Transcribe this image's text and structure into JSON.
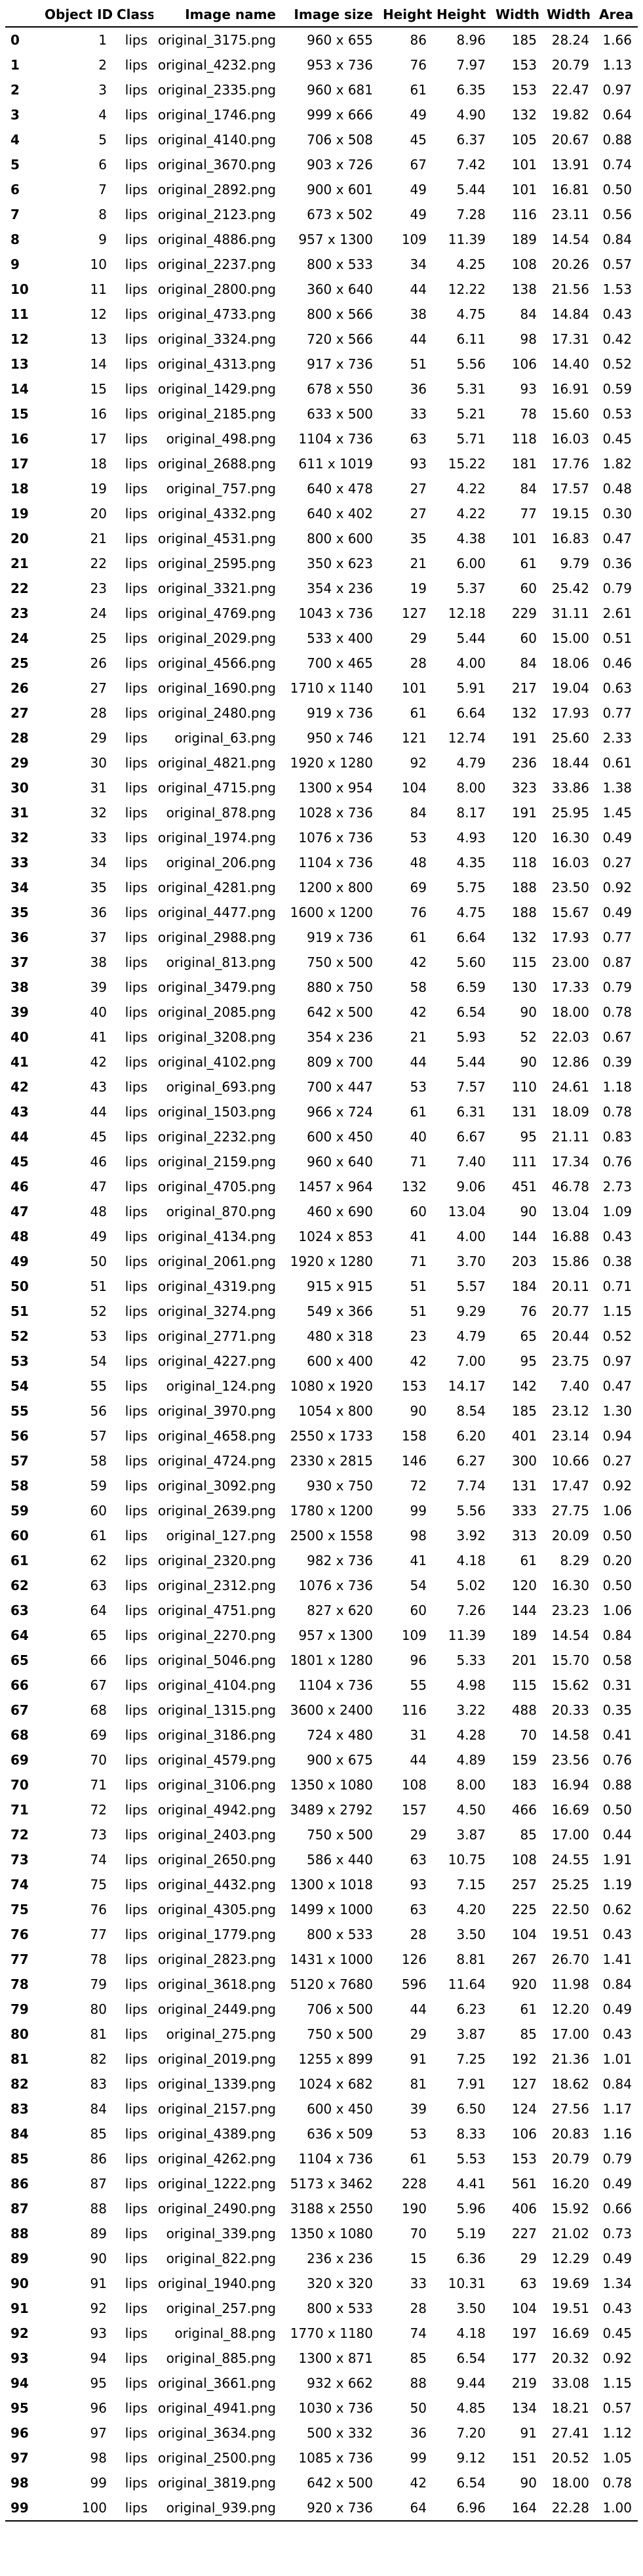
{
  "table": {
    "columns": [
      "",
      "Object ID",
      "Class",
      "Image name",
      "Image size",
      "Height",
      "Height",
      "Width",
      "Width",
      "Area"
    ],
    "rows": [
      [
        "0",
        "1",
        "lips",
        "original_3175.png",
        "960 x 655",
        "86",
        "8.96",
        "185",
        "28.24",
        "1.66"
      ],
      [
        "1",
        "2",
        "lips",
        "original_4232.png",
        "953 x 736",
        "76",
        "7.97",
        "153",
        "20.79",
        "1.13"
      ],
      [
        "2",
        "3",
        "lips",
        "original_2335.png",
        "960 x 681",
        "61",
        "6.35",
        "153",
        "22.47",
        "0.97"
      ],
      [
        "3",
        "4",
        "lips",
        "original_1746.png",
        "999 x 666",
        "49",
        "4.90",
        "132",
        "19.82",
        "0.64"
      ],
      [
        "4",
        "5",
        "lips",
        "original_4140.png",
        "706 x 508",
        "45",
        "6.37",
        "105",
        "20.67",
        "0.88"
      ],
      [
        "5",
        "6",
        "lips",
        "original_3670.png",
        "903 x 726",
        "67",
        "7.42",
        "101",
        "13.91",
        "0.74"
      ],
      [
        "6",
        "7",
        "lips",
        "original_2892.png",
        "900 x 601",
        "49",
        "5.44",
        "101",
        "16.81",
        "0.50"
      ],
      [
        "7",
        "8",
        "lips",
        "original_2123.png",
        "673 x 502",
        "49",
        "7.28",
        "116",
        "23.11",
        "0.56"
      ],
      [
        "8",
        "9",
        "lips",
        "original_4886.png",
        "957 x 1300",
        "109",
        "11.39",
        "189",
        "14.54",
        "0.84"
      ],
      [
        "9",
        "10",
        "lips",
        "original_2237.png",
        "800 x 533",
        "34",
        "4.25",
        "108",
        "20.26",
        "0.57"
      ],
      [
        "10",
        "11",
        "lips",
        "original_2800.png",
        "360 x 640",
        "44",
        "12.22",
        "138",
        "21.56",
        "1.53"
      ],
      [
        "11",
        "12",
        "lips",
        "original_4733.png",
        "800 x 566",
        "38",
        "4.75",
        "84",
        "14.84",
        "0.43"
      ],
      [
        "12",
        "13",
        "lips",
        "original_3324.png",
        "720 x 566",
        "44",
        "6.11",
        "98",
        "17.31",
        "0.42"
      ],
      [
        "13",
        "14",
        "lips",
        "original_4313.png",
        "917 x 736",
        "51",
        "5.56",
        "106",
        "14.40",
        "0.52"
      ],
      [
        "14",
        "15",
        "lips",
        "original_1429.png",
        "678 x 550",
        "36",
        "5.31",
        "93",
        "16.91",
        "0.59"
      ],
      [
        "15",
        "16",
        "lips",
        "original_2185.png",
        "633 x 500",
        "33",
        "5.21",
        "78",
        "15.60",
        "0.53"
      ],
      [
        "16",
        "17",
        "lips",
        "original_498.png",
        "1104 x 736",
        "63",
        "5.71",
        "118",
        "16.03",
        "0.45"
      ],
      [
        "17",
        "18",
        "lips",
        "original_2688.png",
        "611 x 1019",
        "93",
        "15.22",
        "181",
        "17.76",
        "1.82"
      ],
      [
        "18",
        "19",
        "lips",
        "original_757.png",
        "640 x 478",
        "27",
        "4.22",
        "84",
        "17.57",
        "0.48"
      ],
      [
        "19",
        "20",
        "lips",
        "original_4332.png",
        "640 x 402",
        "27",
        "4.22",
        "77",
        "19.15",
        "0.30"
      ],
      [
        "20",
        "21",
        "lips",
        "original_4531.png",
        "800 x 600",
        "35",
        "4.38",
        "101",
        "16.83",
        "0.47"
      ],
      [
        "21",
        "22",
        "lips",
        "original_2595.png",
        "350 x 623",
        "21",
        "6.00",
        "61",
        "9.79",
        "0.36"
      ],
      [
        "22",
        "23",
        "lips",
        "original_3321.png",
        "354 x 236",
        "19",
        "5.37",
        "60",
        "25.42",
        "0.79"
      ],
      [
        "23",
        "24",
        "lips",
        "original_4769.png",
        "1043 x 736",
        "127",
        "12.18",
        "229",
        "31.11",
        "2.61"
      ],
      [
        "24",
        "25",
        "lips",
        "original_2029.png",
        "533 x 400",
        "29",
        "5.44",
        "60",
        "15.00",
        "0.51"
      ],
      [
        "25",
        "26",
        "lips",
        "original_4566.png",
        "700 x 465",
        "28",
        "4.00",
        "84",
        "18.06",
        "0.46"
      ],
      [
        "26",
        "27",
        "lips",
        "original_1690.png",
        "1710 x 1140",
        "101",
        "5.91",
        "217",
        "19.04",
        "0.63"
      ],
      [
        "27",
        "28",
        "lips",
        "original_2480.png",
        "919 x 736",
        "61",
        "6.64",
        "132",
        "17.93",
        "0.77"
      ],
      [
        "28",
        "29",
        "lips",
        "original_63.png",
        "950 x 746",
        "121",
        "12.74",
        "191",
        "25.60",
        "2.33"
      ],
      [
        "29",
        "30",
        "lips",
        "original_4821.png",
        "1920 x 1280",
        "92",
        "4.79",
        "236",
        "18.44",
        "0.61"
      ],
      [
        "30",
        "31",
        "lips",
        "original_4715.png",
        "1300 x 954",
        "104",
        "8.00",
        "323",
        "33.86",
        "1.38"
      ],
      [
        "31",
        "32",
        "lips",
        "original_878.png",
        "1028 x 736",
        "84",
        "8.17",
        "191",
        "25.95",
        "1.45"
      ],
      [
        "32",
        "33",
        "lips",
        "original_1974.png",
        "1076 x 736",
        "53",
        "4.93",
        "120",
        "16.30",
        "0.49"
      ],
      [
        "33",
        "34",
        "lips",
        "original_206.png",
        "1104 x 736",
        "48",
        "4.35",
        "118",
        "16.03",
        "0.27"
      ],
      [
        "34",
        "35",
        "lips",
        "original_4281.png",
        "1200 x 800",
        "69",
        "5.75",
        "188",
        "23.50",
        "0.92"
      ],
      [
        "35",
        "36",
        "lips",
        "original_4477.png",
        "1600 x 1200",
        "76",
        "4.75",
        "188",
        "15.67",
        "0.49"
      ],
      [
        "36",
        "37",
        "lips",
        "original_2988.png",
        "919 x 736",
        "61",
        "6.64",
        "132",
        "17.93",
        "0.77"
      ],
      [
        "37",
        "38",
        "lips",
        "original_813.png",
        "750 x 500",
        "42",
        "5.60",
        "115",
        "23.00",
        "0.87"
      ],
      [
        "38",
        "39",
        "lips",
        "original_3479.png",
        "880 x 750",
        "58",
        "6.59",
        "130",
        "17.33",
        "0.79"
      ],
      [
        "39",
        "40",
        "lips",
        "original_2085.png",
        "642 x 500",
        "42",
        "6.54",
        "90",
        "18.00",
        "0.78"
      ],
      [
        "40",
        "41",
        "lips",
        "original_3208.png",
        "354 x 236",
        "21",
        "5.93",
        "52",
        "22.03",
        "0.67"
      ],
      [
        "41",
        "42",
        "lips",
        "original_4102.png",
        "809 x 700",
        "44",
        "5.44",
        "90",
        "12.86",
        "0.39"
      ],
      [
        "42",
        "43",
        "lips",
        "original_693.png",
        "700 x 447",
        "53",
        "7.57",
        "110",
        "24.61",
        "1.18"
      ],
      [
        "43",
        "44",
        "lips",
        "original_1503.png",
        "966 x 724",
        "61",
        "6.31",
        "131",
        "18.09",
        "0.78"
      ],
      [
        "44",
        "45",
        "lips",
        "original_2232.png",
        "600 x 450",
        "40",
        "6.67",
        "95",
        "21.11",
        "0.83"
      ],
      [
        "45",
        "46",
        "lips",
        "original_2159.png",
        "960 x 640",
        "71",
        "7.40",
        "111",
        "17.34",
        "0.76"
      ],
      [
        "46",
        "47",
        "lips",
        "original_4705.png",
        "1457 x 964",
        "132",
        "9.06",
        "451",
        "46.78",
        "2.73"
      ],
      [
        "47",
        "48",
        "lips",
        "original_870.png",
        "460 x 690",
        "60",
        "13.04",
        "90",
        "13.04",
        "1.09"
      ],
      [
        "48",
        "49",
        "lips",
        "original_4134.png",
        "1024 x 853",
        "41",
        "4.00",
        "144",
        "16.88",
        "0.43"
      ],
      [
        "49",
        "50",
        "lips",
        "original_2061.png",
        "1920 x 1280",
        "71",
        "3.70",
        "203",
        "15.86",
        "0.38"
      ],
      [
        "50",
        "51",
        "lips",
        "original_4319.png",
        "915 x 915",
        "51",
        "5.57",
        "184",
        "20.11",
        "0.71"
      ],
      [
        "51",
        "52",
        "lips",
        "original_3274.png",
        "549 x 366",
        "51",
        "9.29",
        "76",
        "20.77",
        "1.15"
      ],
      [
        "52",
        "53",
        "lips",
        "original_2771.png",
        "480 x 318",
        "23",
        "4.79",
        "65",
        "20.44",
        "0.52"
      ],
      [
        "53",
        "54",
        "lips",
        "original_4227.png",
        "600 x 400",
        "42",
        "7.00",
        "95",
        "23.75",
        "0.97"
      ],
      [
        "54",
        "55",
        "lips",
        "original_124.png",
        "1080 x 1920",
        "153",
        "14.17",
        "142",
        "7.40",
        "0.47"
      ],
      [
        "55",
        "56",
        "lips",
        "original_3970.png",
        "1054 x 800",
        "90",
        "8.54",
        "185",
        "23.12",
        "1.30"
      ],
      [
        "56",
        "57",
        "lips",
        "original_4658.png",
        "2550 x 1733",
        "158",
        "6.20",
        "401",
        "23.14",
        "0.94"
      ],
      [
        "57",
        "58",
        "lips",
        "original_4724.png",
        "2330 x 2815",
        "146",
        "6.27",
        "300",
        "10.66",
        "0.27"
      ],
      [
        "58",
        "59",
        "lips",
        "original_3092.png",
        "930 x 750",
        "72",
        "7.74",
        "131",
        "17.47",
        "0.92"
      ],
      [
        "59",
        "60",
        "lips",
        "original_2639.png",
        "1780 x 1200",
        "99",
        "5.56",
        "333",
        "27.75",
        "1.06"
      ],
      [
        "60",
        "61",
        "lips",
        "original_127.png",
        "2500 x 1558",
        "98",
        "3.92",
        "313",
        "20.09",
        "0.50"
      ],
      [
        "61",
        "62",
        "lips",
        "original_2320.png",
        "982 x 736",
        "41",
        "4.18",
        "61",
        "8.29",
        "0.20"
      ],
      [
        "62",
        "63",
        "lips",
        "original_2312.png",
        "1076 x 736",
        "54",
        "5.02",
        "120",
        "16.30",
        "0.50"
      ],
      [
        "63",
        "64",
        "lips",
        "original_4751.png",
        "827 x 620",
        "60",
        "7.26",
        "144",
        "23.23",
        "1.06"
      ],
      [
        "64",
        "65",
        "lips",
        "original_2270.png",
        "957 x 1300",
        "109",
        "11.39",
        "189",
        "14.54",
        "0.84"
      ],
      [
        "65",
        "66",
        "lips",
        "original_5046.png",
        "1801 x 1280",
        "96",
        "5.33",
        "201",
        "15.70",
        "0.58"
      ],
      [
        "66",
        "67",
        "lips",
        "original_4104.png",
        "1104 x 736",
        "55",
        "4.98",
        "115",
        "15.62",
        "0.31"
      ],
      [
        "67",
        "68",
        "lips",
        "original_1315.png",
        "3600 x 2400",
        "116",
        "3.22",
        "488",
        "20.33",
        "0.35"
      ],
      [
        "68",
        "69",
        "lips",
        "original_3186.png",
        "724 x 480",
        "31",
        "4.28",
        "70",
        "14.58",
        "0.41"
      ],
      [
        "69",
        "70",
        "lips",
        "original_4579.png",
        "900 x 675",
        "44",
        "4.89",
        "159",
        "23.56",
        "0.76"
      ],
      [
        "70",
        "71",
        "lips",
        "original_3106.png",
        "1350 x 1080",
        "108",
        "8.00",
        "183",
        "16.94",
        "0.88"
      ],
      [
        "71",
        "72",
        "lips",
        "original_4942.png",
        "3489 x 2792",
        "157",
        "4.50",
        "466",
        "16.69",
        "0.50"
      ],
      [
        "72",
        "73",
        "lips",
        "original_2403.png",
        "750 x 500",
        "29",
        "3.87",
        "85",
        "17.00",
        "0.44"
      ],
      [
        "73",
        "74",
        "lips",
        "original_2650.png",
        "586 x 440",
        "63",
        "10.75",
        "108",
        "24.55",
        "1.91"
      ],
      [
        "74",
        "75",
        "lips",
        "original_4432.png",
        "1300 x 1018",
        "93",
        "7.15",
        "257",
        "25.25",
        "1.19"
      ],
      [
        "75",
        "76",
        "lips",
        "original_4305.png",
        "1499 x 1000",
        "63",
        "4.20",
        "225",
        "22.50",
        "0.62"
      ],
      [
        "76",
        "77",
        "lips",
        "original_1779.png",
        "800 x 533",
        "28",
        "3.50",
        "104",
        "19.51",
        "0.43"
      ],
      [
        "77",
        "78",
        "lips",
        "original_2823.png",
        "1431 x 1000",
        "126",
        "8.81",
        "267",
        "26.70",
        "1.41"
      ],
      [
        "78",
        "79",
        "lips",
        "original_3618.png",
        "5120 x 7680",
        "596",
        "11.64",
        "920",
        "11.98",
        "0.84"
      ],
      [
        "79",
        "80",
        "lips",
        "original_2449.png",
        "706 x 500",
        "44",
        "6.23",
        "61",
        "12.20",
        "0.49"
      ],
      [
        "80",
        "81",
        "lips",
        "original_275.png",
        "750 x 500",
        "29",
        "3.87",
        "85",
        "17.00",
        "0.43"
      ],
      [
        "81",
        "82",
        "lips",
        "original_2019.png",
        "1255 x 899",
        "91",
        "7.25",
        "192",
        "21.36",
        "1.01"
      ],
      [
        "82",
        "83",
        "lips",
        "original_1339.png",
        "1024 x 682",
        "81",
        "7.91",
        "127",
        "18.62",
        "0.84"
      ],
      [
        "83",
        "84",
        "lips",
        "original_2157.png",
        "600 x 450",
        "39",
        "6.50",
        "124",
        "27.56",
        "1.17"
      ],
      [
        "84",
        "85",
        "lips",
        "original_4389.png",
        "636 x 509",
        "53",
        "8.33",
        "106",
        "20.83",
        "1.16"
      ],
      [
        "85",
        "86",
        "lips",
        "original_4262.png",
        "1104 x 736",
        "61",
        "5.53",
        "153",
        "20.79",
        "0.79"
      ],
      [
        "86",
        "87",
        "lips",
        "original_1222.png",
        "5173 x 3462",
        "228",
        "4.41",
        "561",
        "16.20",
        "0.49"
      ],
      [
        "87",
        "88",
        "lips",
        "original_2490.png",
        "3188 x 2550",
        "190",
        "5.96",
        "406",
        "15.92",
        "0.66"
      ],
      [
        "88",
        "89",
        "lips",
        "original_339.png",
        "1350 x 1080",
        "70",
        "5.19",
        "227",
        "21.02",
        "0.73"
      ],
      [
        "89",
        "90",
        "lips",
        "original_822.png",
        "236 x 236",
        "15",
        "6.36",
        "29",
        "12.29",
        "0.49"
      ],
      [
        "90",
        "91",
        "lips",
        "original_1940.png",
        "320 x 320",
        "33",
        "10.31",
        "63",
        "19.69",
        "1.34"
      ],
      [
        "91",
        "92",
        "lips",
        "original_257.png",
        "800 x 533",
        "28",
        "3.50",
        "104",
        "19.51",
        "0.43"
      ],
      [
        "92",
        "93",
        "lips",
        "original_88.png",
        "1770 x 1180",
        "74",
        "4.18",
        "197",
        "16.69",
        "0.45"
      ],
      [
        "93",
        "94",
        "lips",
        "original_885.png",
        "1300 x 871",
        "85",
        "6.54",
        "177",
        "20.32",
        "0.92"
      ],
      [
        "94",
        "95",
        "lips",
        "original_3661.png",
        "932 x 662",
        "88",
        "9.44",
        "219",
        "33.08",
        "1.15"
      ],
      [
        "95",
        "96",
        "lips",
        "original_4941.png",
        "1030 x 736",
        "50",
        "4.85",
        "134",
        "18.21",
        "0.57"
      ],
      [
        "96",
        "97",
        "lips",
        "original_3634.png",
        "500 x 332",
        "36",
        "7.20",
        "91",
        "27.41",
        "1.12"
      ],
      [
        "97",
        "98",
        "lips",
        "original_2500.png",
        "1085 x 736",
        "99",
        "9.12",
        "151",
        "20.52",
        "1.05"
      ],
      [
        "98",
        "99",
        "lips",
        "original_3819.png",
        "642 x 500",
        "42",
        "6.54",
        "90",
        "18.00",
        "0.78"
      ],
      [
        "99",
        "100",
        "lips",
        "original_939.png",
        "920 x 736",
        "64",
        "6.96",
        "164",
        "22.28",
        "1.00"
      ]
    ]
  }
}
